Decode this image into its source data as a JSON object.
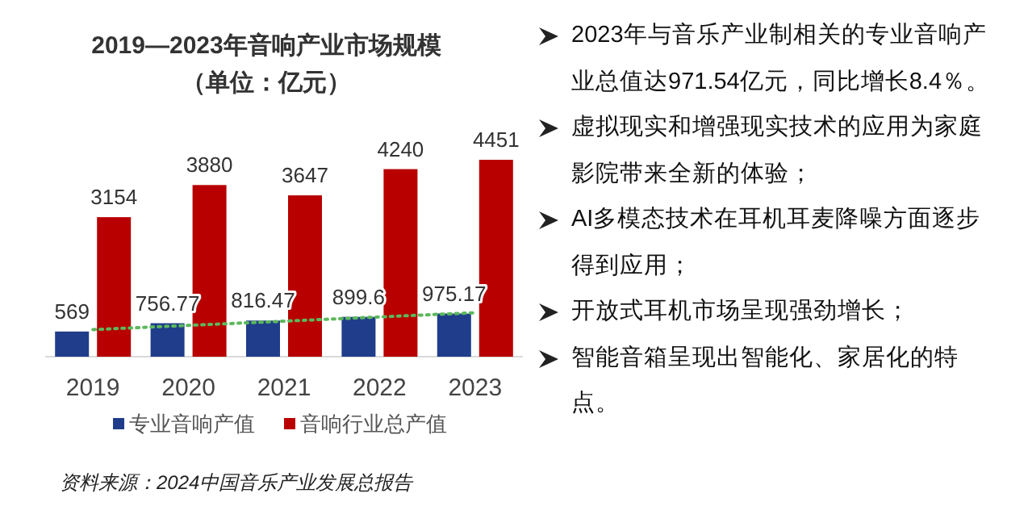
{
  "chart_data": [
    {
      "type": "bar",
      "title": "2019—2023年音响产业市场规模",
      "subtitle": "（单位：亿元）",
      "categories": [
        "2019",
        "2020",
        "2021",
        "2022",
        "2023"
      ],
      "series": [
        {
          "name": "专业音响产值",
          "color": "#1f3d8a",
          "values": [
            569,
            756.77,
            816.47,
            899.6,
            975.17
          ],
          "value_labels": [
            "569",
            "756.77",
            "816.47",
            "899.6",
            "975.17"
          ]
        },
        {
          "name": "音响行业总产值",
          "color": "#b80000",
          "values": [
            3154,
            3880,
            3647,
            4240,
            4451
          ],
          "value_labels": [
            "3154",
            "3880",
            "3647",
            "4240",
            "4451"
          ]
        },
        {
          "type": "line",
          "color": "#5cb85c",
          "line_style": "dotted",
          "values": [
            612,
            708,
            803,
            899,
            994
          ]
        }
      ],
      "legend": "bottom",
      "annotations": [
        "资料来源：2024中国音乐产业发展总报告"
      ]
    },
    {
      "type": "other",
      "annotations": [
        "2023年与音乐产业制相关的专业音响产业总值达971.54亿元，同比增长8.4％。",
        "虚拟现实和增强现实技术的应用为家庭影院带来全新的体验；",
        "AI多模态技术在耳机耳麦降噪方面逐步得到应用；",
        "开放式耳机市场呈现强劲增长；",
        "智能音箱呈现出智能化、家居化的特点。"
      ]
    }
  ]
}
